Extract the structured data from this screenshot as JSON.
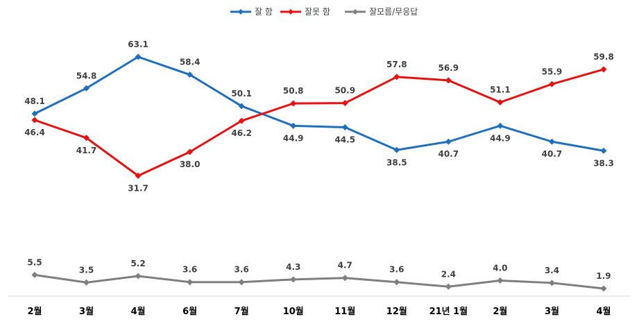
{
  "chart_data": {
    "type": "line",
    "title": "",
    "xlabel": "",
    "ylabel": "",
    "categories": [
      "2월",
      "3월",
      "4월",
      "6월",
      "7월",
      "10월",
      "11월",
      "12월",
      "21년 1월",
      "2월",
      "3월",
      "4월"
    ],
    "series": [
      {
        "name": "잘 함",
        "color": "#1F6FBF",
        "values": [
          48.1,
          54.8,
          63.1,
          58.4,
          50.1,
          44.9,
          44.5,
          38.5,
          40.7,
          44.9,
          40.7,
          38.3
        ]
      },
      {
        "name": "잘못 함",
        "color": "#E81010",
        "values": [
          46.4,
          41.7,
          31.7,
          38.0,
          46.2,
          50.8,
          50.9,
          57.8,
          56.9,
          51.1,
          55.9,
          59.8
        ]
      },
      {
        "name": "잘모름/무응답",
        "color": "#7F7F7F",
        "values": [
          5.5,
          3.5,
          5.2,
          3.6,
          3.6,
          4.3,
          4.7,
          3.6,
          2.4,
          4.0,
          3.4,
          1.9
        ]
      }
    ],
    "legend_position": "top-center",
    "grid": false,
    "marker": "diamond"
  }
}
